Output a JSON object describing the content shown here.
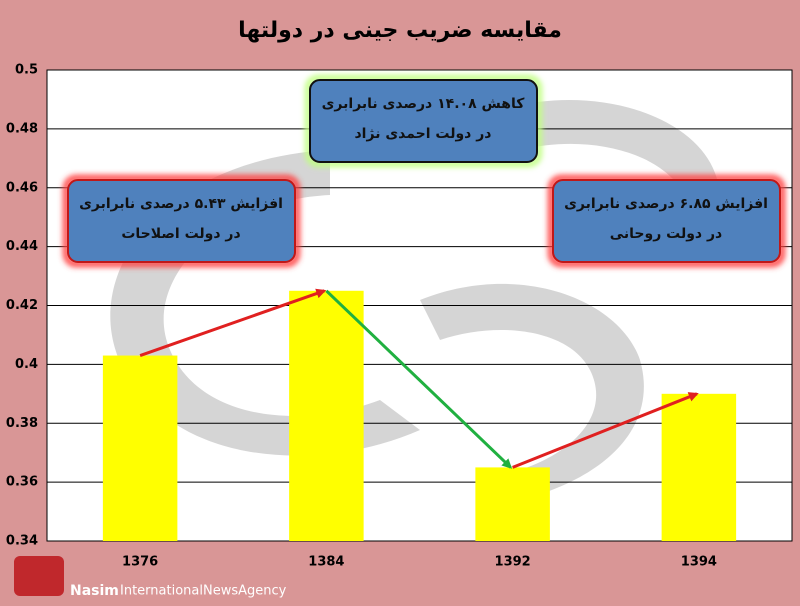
{
  "chart_data": {
    "type": "bar",
    "title": "مقایسه ضریب جینی در دولتها",
    "categories": [
      "1376",
      "1384",
      "1392",
      "1394"
    ],
    "values": [
      0.403,
      0.425,
      0.365,
      0.39
    ],
    "color": "#ffff00",
    "ylim": [
      0.34,
      0.5
    ],
    "yticks": [
      0.34,
      0.36,
      0.38,
      0.4,
      0.42,
      0.44,
      0.46,
      0.48,
      0.5
    ],
    "grid": true,
    "annotations": [
      [
        "افزایش ۵.۴۳ درصدی نابرابری",
        "در دولت اصلاحات"
      ],
      [
        "کاهش ۱۴.۰۸ درصدی نابرابری",
        "در دولت احمدی نژاد"
      ],
      [
        "افزایش ۶.۸۵ درصدی نابرابری",
        "در دولت روحانی"
      ]
    ]
  },
  "logo": {
    "brand": "Nasim",
    "tagline": "InternationalNewsAgency"
  }
}
